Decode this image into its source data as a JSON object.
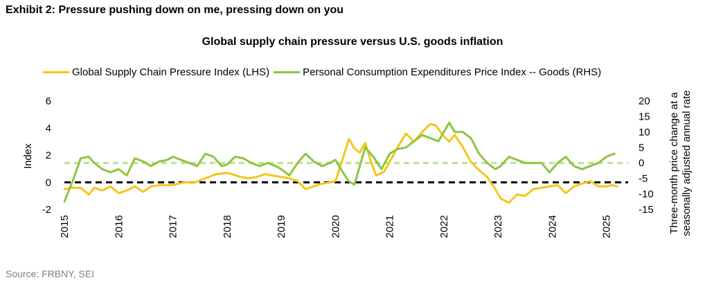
{
  "exhibit_title": "Exhibit 2: Pressure pushing down on me, pressing down on you",
  "source": "Source: FRBNY, SEI",
  "colors": {
    "gscpi": "#f5c518",
    "pce": "#8cc63f",
    "zero": "#000000",
    "pce_avg": "#b9e08a"
  },
  "chart_data": {
    "type": "line",
    "title": "Global supply chain pressure versus U.S. goods inflation",
    "ylabel": "Index",
    "y2label_line1": "Three-month price change at a",
    "y2label_line2": "seasonally adjusted annual rate",
    "ylim": [
      -2,
      6
    ],
    "y2lim": [
      -15,
      20
    ],
    "yticks": [
      "6",
      "4",
      "2",
      "0",
      "-2"
    ],
    "y2ticks": [
      "20",
      "15",
      "10",
      "5",
      "0",
      "-5",
      "-10",
      "-15"
    ],
    "xlim": [
      2015,
      2025.4
    ],
    "xticks": [
      "2015",
      "2016",
      "2017",
      "2018",
      "2019",
      "2020",
      "2021",
      "2022",
      "2023",
      "2024",
      "2025"
    ],
    "grid": false,
    "legend_position": "top",
    "reference_lines": [
      {
        "axis": "left",
        "value": 0,
        "style": "dashed-black"
      },
      {
        "axis": "right",
        "value": 0,
        "style": "dashed-lightgreen"
      }
    ],
    "series": [
      {
        "name": "Global Supply Chain Pressure Index (LHS)",
        "axis": "left",
        "x": [
          2015.0,
          2015.15,
          2015.3,
          2015.45,
          2015.55,
          2015.7,
          2015.85,
          2016.0,
          2016.15,
          2016.3,
          2016.45,
          2016.6,
          2016.75,
          2016.9,
          2017.0,
          2017.2,
          2017.4,
          2017.6,
          2017.8,
          2018.0,
          2018.1,
          2018.25,
          2018.4,
          2018.55,
          2018.7,
          2018.85,
          2019.0,
          2019.15,
          2019.3,
          2019.45,
          2019.6,
          2019.75,
          2019.9,
          2020.0,
          2020.1,
          2020.25,
          2020.35,
          2020.45,
          2020.55,
          2020.65,
          2020.75,
          2020.9,
          2021.0,
          2021.15,
          2021.3,
          2021.45,
          2021.6,
          2021.75,
          2021.85,
          2022.0,
          2022.1,
          2022.2,
          2022.35,
          2022.5,
          2022.65,
          2022.8,
          2022.95,
          2023.05,
          2023.2,
          2023.35,
          2023.5,
          2023.65,
          2023.8,
          2023.95,
          2024.1,
          2024.25,
          2024.4,
          2024.55,
          2024.7,
          2024.85,
          2025.0,
          2025.1,
          2025.2
        ],
        "values": [
          -0.5,
          -0.4,
          -0.4,
          -0.9,
          -0.4,
          -0.6,
          -0.3,
          -0.8,
          -0.6,
          -0.3,
          -0.7,
          -0.3,
          -0.2,
          -0.2,
          -0.2,
          0.0,
          0.0,
          0.3,
          0.6,
          0.7,
          0.6,
          0.4,
          0.3,
          0.4,
          0.6,
          0.5,
          0.4,
          0.3,
          0.1,
          -0.5,
          -0.3,
          -0.1,
          0.0,
          0.1,
          1.3,
          3.2,
          2.5,
          2.2,
          2.9,
          1.6,
          0.5,
          0.8,
          1.5,
          2.6,
          3.6,
          3.0,
          3.7,
          4.3,
          4.2,
          3.4,
          3.0,
          3.5,
          2.6,
          1.5,
          0.9,
          0.4,
          -0.5,
          -1.2,
          -1.5,
          -0.9,
          -1.0,
          -0.5,
          -0.4,
          -0.3,
          -0.2,
          -0.8,
          -0.3,
          -0.1,
          0.1,
          -0.3,
          -0.3,
          -0.2,
          -0.3
        ]
      },
      {
        "name": "Personal Consumption Expenditures Price Index -- Goods (RHS)",
        "axis": "right",
        "x": [
          2015.0,
          2015.15,
          2015.3,
          2015.45,
          2015.55,
          2015.7,
          2015.85,
          2016.0,
          2016.15,
          2016.3,
          2016.45,
          2016.6,
          2016.75,
          2016.9,
          2017.0,
          2017.15,
          2017.3,
          2017.45,
          2017.6,
          2017.75,
          2017.9,
          2018.0,
          2018.15,
          2018.3,
          2018.45,
          2018.6,
          2018.75,
          2018.9,
          2019.0,
          2019.15,
          2019.3,
          2019.45,
          2019.6,
          2019.75,
          2019.9,
          2020.0,
          2020.1,
          2020.25,
          2020.35,
          2020.45,
          2020.55,
          2020.7,
          2020.85,
          2021.0,
          2021.15,
          2021.3,
          2021.45,
          2021.6,
          2021.75,
          2021.9,
          2022.0,
          2022.1,
          2022.2,
          2022.35,
          2022.5,
          2022.65,
          2022.8,
          2022.95,
          2023.05,
          2023.2,
          2023.35,
          2023.5,
          2023.65,
          2023.8,
          2023.95,
          2024.1,
          2024.25,
          2024.4,
          2024.55,
          2024.7,
          2024.85,
          2025.0,
          2025.15
        ],
        "values": [
          -12.5,
          -6,
          1.5,
          2,
          0,
          -2,
          -3,
          -2,
          -4,
          1.5,
          0.5,
          -1,
          0.5,
          1,
          2,
          1,
          0,
          -1,
          3,
          2,
          -1,
          -0.5,
          2,
          1.5,
          0,
          -1,
          0,
          -1,
          -2,
          -4,
          0,
          3,
          0.5,
          -1,
          0,
          1,
          -2,
          -6,
          -7,
          -1,
          5,
          2,
          -2,
          3,
          4.5,
          5,
          7,
          9,
          8,
          7,
          10,
          13,
          10,
          10,
          8,
          3,
          0,
          -2,
          -1,
          2,
          1,
          0,
          0,
          0,
          -3,
          0,
          2,
          -1,
          -2,
          -1,
          0,
          2,
          3
        ]
      }
    ]
  }
}
